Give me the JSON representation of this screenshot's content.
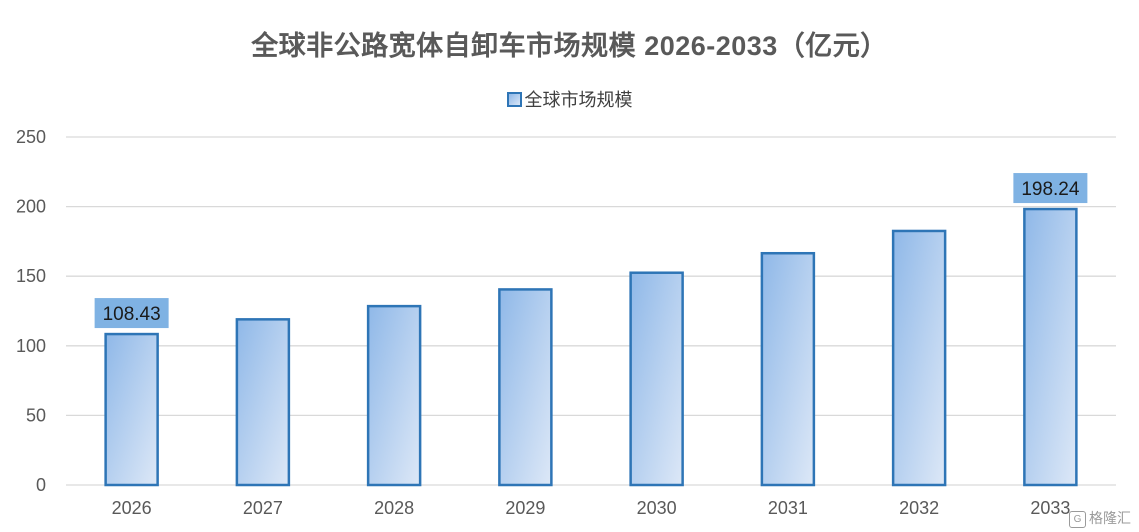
{
  "chart_data": {
    "type": "bar",
    "title": "全球非公路宽体自卸车市场规模 2026-2033（亿元）",
    "legend": [
      "全球市场规模"
    ],
    "legend_position": "top",
    "categories": [
      "2026",
      "2027",
      "2028",
      "2029",
      "2030",
      "2031",
      "2032",
      "2033"
    ],
    "series": [
      {
        "name": "全球市场规模",
        "values": [
          108.43,
          119,
          128.5,
          140.5,
          152.5,
          166.5,
          182.5,
          198.24
        ]
      }
    ],
    "data_labels": [
      {
        "category": "2026",
        "text": "108.43"
      },
      {
        "category": "2033",
        "text": "198.24"
      }
    ],
    "ylim": [
      0,
      250
    ],
    "yticks": [
      "0",
      "50",
      "100",
      "150",
      "200",
      "250"
    ],
    "grid": true,
    "colors": {
      "bar_fill_start": "#8fb8e8",
      "bar_fill_end": "#dde8f7",
      "bar_border": "#2e75b6",
      "label_bg": "#7fb2e3",
      "grid": "#d9d9d9"
    }
  },
  "watermark": {
    "text": "格隆汇",
    "icon": "gelonghui-logo-icon"
  }
}
